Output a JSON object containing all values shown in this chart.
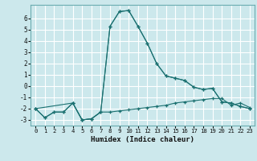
{
  "xlabel": "Humidex (Indice chaleur)",
  "bg_color": "#cce8ec",
  "grid_color": "#ffffff",
  "line_color": "#1a7070",
  "xlim": [
    -0.5,
    23.5
  ],
  "ylim": [
    -3.5,
    7.2
  ],
  "yticks": [
    -3,
    -2,
    -1,
    0,
    1,
    2,
    3,
    4,
    5,
    6
  ],
  "xticks": [
    0,
    1,
    2,
    3,
    4,
    5,
    6,
    7,
    8,
    9,
    10,
    11,
    12,
    13,
    14,
    15,
    16,
    17,
    18,
    19,
    20,
    21,
    22,
    23
  ],
  "series1_x": [
    0,
    1,
    2,
    3,
    4,
    5,
    6,
    7,
    8,
    9,
    10,
    11,
    12,
    13,
    14,
    15,
    16,
    17,
    18,
    19,
    20,
    21,
    22,
    23
  ],
  "series1_y": [
    -2.0,
    -2.8,
    -2.3,
    -2.3,
    -1.5,
    -3.0,
    -2.9,
    -2.3,
    -2.3,
    -2.2,
    -2.1,
    -2.0,
    -1.9,
    -1.8,
    -1.7,
    -1.5,
    -1.4,
    -1.3,
    -1.2,
    -1.1,
    -1.1,
    -1.7,
    -1.5,
    -1.9
  ],
  "series2_x": [
    0,
    1,
    2,
    3,
    4,
    5,
    6,
    7,
    8,
    9,
    10,
    11,
    12,
    13,
    14,
    15,
    16,
    17,
    18,
    19,
    20,
    21,
    22,
    23
  ],
  "series2_y": [
    -2.0,
    -2.8,
    -2.3,
    -2.3,
    -1.5,
    -3.0,
    -2.9,
    -2.3,
    5.3,
    6.6,
    6.7,
    5.3,
    3.8,
    2.0,
    0.9,
    0.7,
    0.5,
    -0.1,
    -0.3,
    -0.2,
    -1.4,
    -1.5,
    -1.8,
    -2.0
  ],
  "series3_x": [
    0,
    4,
    5,
    6,
    7,
    8,
    9,
    10,
    11,
    12,
    13,
    14,
    15,
    16,
    17,
    18,
    19,
    20,
    21,
    22,
    23
  ],
  "series3_y": [
    -2.0,
    -1.5,
    -3.0,
    -2.9,
    -2.3,
    5.3,
    6.6,
    6.7,
    5.3,
    3.8,
    2.0,
    0.9,
    0.7,
    0.5,
    -0.1,
    -0.3,
    -0.2,
    -1.4,
    -1.5,
    -1.8,
    -2.0
  ]
}
